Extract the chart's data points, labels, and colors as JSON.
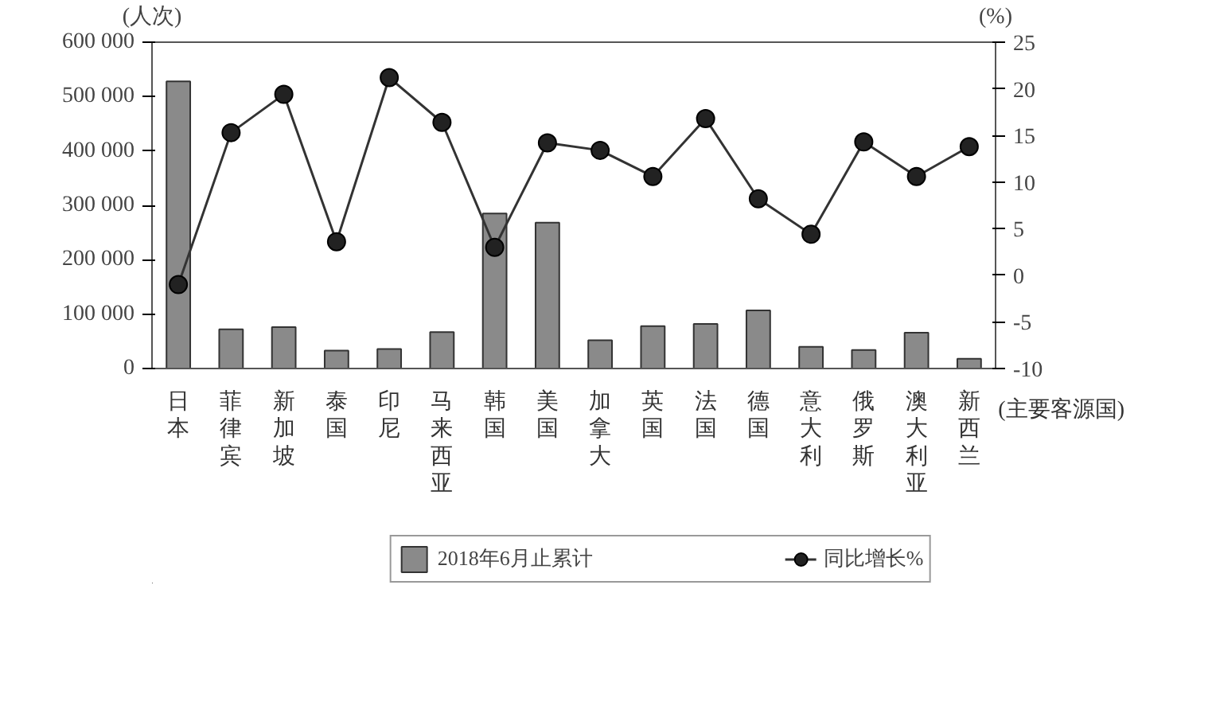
{
  "chart_data": {
    "type": "bar",
    "categories": [
      "日本",
      "菲律宾",
      "新加坡",
      "泰国",
      "印尼",
      "马来西亚",
      "韩国",
      "美国",
      "加拿大",
      "英国",
      "法国",
      "德国",
      "意大利",
      "俄罗斯",
      "澳大利亚",
      "新西兰"
    ],
    "series": [
      {
        "name": "2018年6月止累计",
        "color": "#8a8a8a",
        "values": [
          528000,
          72000,
          76000,
          33000,
          36000,
          67000,
          285000,
          268000,
          52000,
          78000,
          82000,
          107000,
          40000,
          34000,
          66000,
          18000
        ]
      },
      {
        "name": "同比增长%",
        "type": "line",
        "axis": "y2",
        "color": "#333333",
        "values": [
          -1,
          15.3,
          19.4,
          3.6,
          21.2,
          16.4,
          3,
          14.2,
          13.4,
          10.6,
          16.8,
          8.2,
          4.4,
          14.3,
          10.6,
          13.8
        ]
      }
    ],
    "ylabel": "(人次)",
    "y2label": "(%)",
    "xlabel": "(主要客源国)",
    "ylim": [
      0,
      600000
    ],
    "yticks": [
      {
        "value": 0,
        "label": "0"
      },
      {
        "value": 100000,
        "label": "100 000"
      },
      {
        "value": 200000,
        "label": "200 000"
      },
      {
        "value": 300000,
        "label": "300 000"
      },
      {
        "value": 400000,
        "label": "400 000"
      },
      {
        "value": 500000,
        "label": "500 000"
      },
      {
        "value": 600000,
        "label": "600 000"
      }
    ],
    "y2lim": [
      -10,
      25
    ],
    "y2ticks": [
      -10,
      -5,
      0,
      5,
      10,
      15,
      20,
      25
    ],
    "grid": false,
    "legend": "bottom",
    "marker": "circle",
    "line_style": "solid"
  }
}
